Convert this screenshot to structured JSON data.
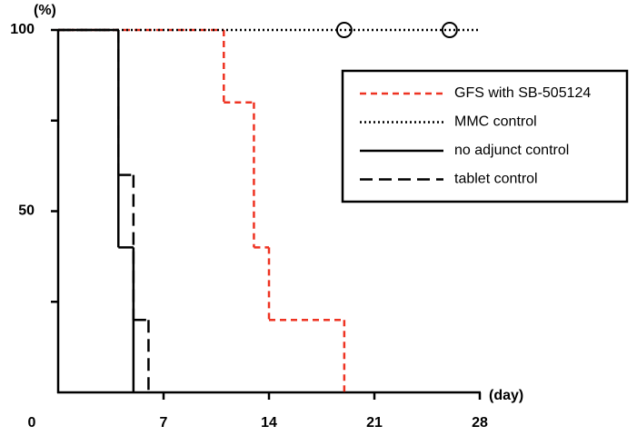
{
  "chart_data": {
    "type": "step",
    "x_label": "(day)",
    "y_label": "(%)",
    "xlim": [
      0,
      28
    ],
    "ylim": [
      0,
      100
    ],
    "xticks": [
      0,
      7,
      14,
      21,
      28
    ],
    "yticks": [
      {
        "value": 25,
        "label": null
      },
      50,
      {
        "value": 75,
        "label": null
      },
      100
    ],
    "series": [
      {
        "name": "GFS with SB-505124",
        "color": "#ee3322",
        "dash": "7,5",
        "x": [
          0,
          11,
          13,
          14,
          19
        ],
        "values": [
          100,
          80,
          40,
          20,
          0
        ]
      },
      {
        "name": "MMC control",
        "color": "#000000",
        "dash": "2,3",
        "x": [
          0,
          28
        ],
        "values": [
          100,
          100
        ],
        "censored": [
          19,
          26
        ]
      },
      {
        "name": "no adjunct control",
        "color": "#000000",
        "dash": "none",
        "x": [
          0,
          4,
          5
        ],
        "values": [
          100,
          40,
          0
        ]
      },
      {
        "name": "tablet control",
        "color": "#000000",
        "dash": "14,7",
        "x": [
          0,
          4,
          5,
          6
        ],
        "values": [
          100,
          60,
          20,
          0
        ]
      }
    ]
  }
}
